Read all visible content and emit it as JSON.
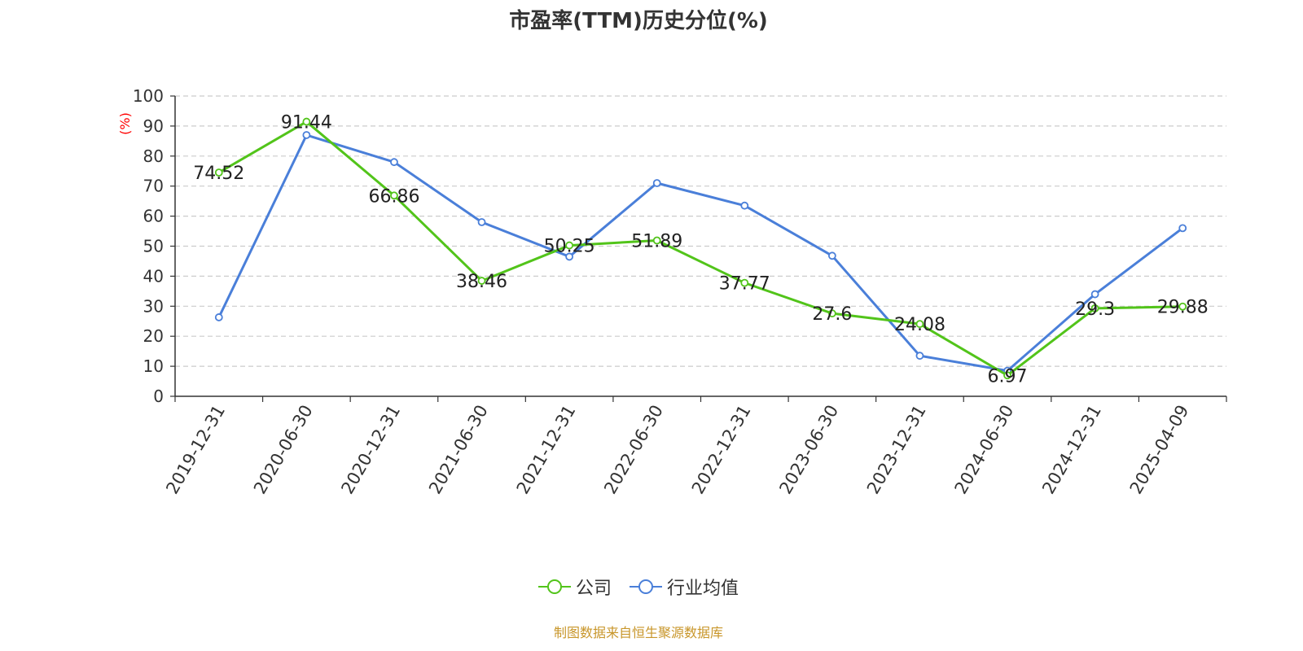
{
  "chart_data": {
    "type": "line",
    "title": "市盈率(TTM)历史分位(%)",
    "ylabel": "(%)",
    "ylim": [
      0,
      100
    ],
    "yticks": [
      0,
      10,
      20,
      30,
      40,
      50,
      60,
      70,
      80,
      90,
      100
    ],
    "categories": [
      "2019-12-31",
      "2020-06-30",
      "2020-12-31",
      "2021-06-30",
      "2021-12-31",
      "2022-06-30",
      "2022-12-31",
      "2023-06-30",
      "2023-12-31",
      "2024-06-30",
      "2024-12-31",
      "2025-04-09"
    ],
    "series": [
      {
        "name": "公司",
        "color": "#52c41a",
        "values": [
          74.52,
          91.44,
          66.86,
          38.46,
          50.25,
          51.89,
          37.77,
          27.6,
          24.08,
          6.97,
          29.3,
          29.88
        ],
        "labels": [
          "74.52",
          "91.44",
          "66.86",
          "38.46",
          "50.25",
          "51.89",
          "37.77",
          "27.6",
          "24.08",
          "6.97",
          "29.3",
          "29.88"
        ]
      },
      {
        "name": "行业均值",
        "color": "#4a7fd9",
        "values": [
          26.3,
          87.0,
          78.0,
          58.0,
          46.5,
          71.0,
          63.5,
          46.8,
          13.5,
          8.5,
          34.0,
          56.0
        ]
      }
    ],
    "grid": true,
    "legend_position": "bottom"
  },
  "source_note": "制图数据来自恒生聚源数据库",
  "source_color": "#c8962a",
  "ylabel_color": "#ff0000"
}
